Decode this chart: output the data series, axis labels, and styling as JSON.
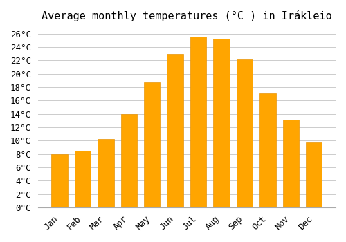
{
  "title": "Average monthly temperatures (°C ) in Irákleio",
  "months": [
    "Jan",
    "Feb",
    "Mar",
    "Apr",
    "May",
    "Jun",
    "Jul",
    "Aug",
    "Sep",
    "Oct",
    "Nov",
    "Dec"
  ],
  "values": [
    8.0,
    8.5,
    10.3,
    14.0,
    18.7,
    23.0,
    25.6,
    25.3,
    22.1,
    17.1,
    13.2,
    9.7
  ],
  "bar_color": "#FFA500",
  "bar_edge_color": "#E8960A",
  "ylim": [
    0,
    27
  ],
  "yticks": [
    0,
    2,
    4,
    6,
    8,
    10,
    12,
    14,
    16,
    18,
    20,
    22,
    24,
    26
  ],
  "background_color": "#ffffff",
  "grid_color": "#cccccc",
  "title_fontsize": 11,
  "tick_fontsize": 9,
  "font_family": "monospace"
}
